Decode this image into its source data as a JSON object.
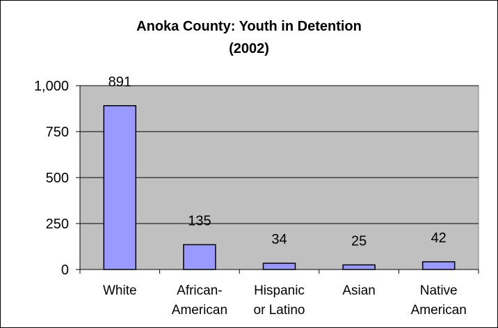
{
  "chart_data": {
    "type": "bar",
    "title": "Anoka County: Youth in Detention",
    "subtitle": "(2002)",
    "categories": [
      [
        "White"
      ],
      [
        "African-",
        "American"
      ],
      [
        "Hispanic",
        "or Latino"
      ],
      [
        "Asian"
      ],
      [
        "Native",
        "American"
      ]
    ],
    "values": [
      891,
      135,
      34,
      25,
      42
    ],
    "value_labels": [
      "891",
      "135",
      "34",
      "25",
      "42"
    ],
    "ylim": [
      0,
      1000
    ],
    "yticks": [
      0,
      250,
      500,
      750,
      1000
    ],
    "ytick_labels": [
      "0",
      "250",
      "500",
      "750",
      "1,000"
    ],
    "xlabel": "",
    "ylabel": "",
    "grid": true,
    "legend": "none",
    "colors": {
      "plot_background": "#c0c0c0",
      "bar_fill": "#9999ff",
      "bar_stroke": "#000000",
      "gridline": "#000000"
    }
  }
}
